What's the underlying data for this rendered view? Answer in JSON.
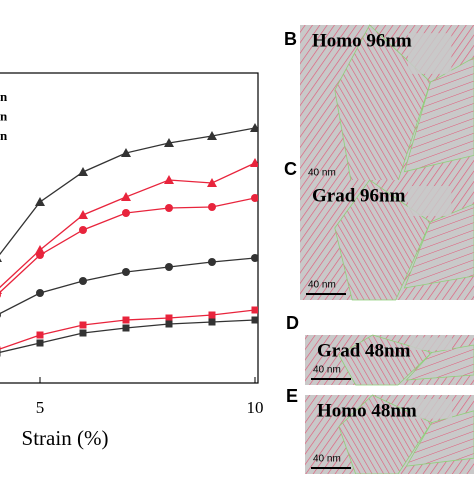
{
  "chart_data": {
    "type": "line",
    "x": [
      4,
      5,
      6,
      7,
      8,
      9,
      10
    ],
    "xlim": [
      4.07,
      10.07
    ],
    "xticks": [
      5,
      10
    ],
    "xlabel": "Strain (%)",
    "ylim": [
      0,
      310
    ],
    "legend_fragments": [
      "n",
      "n",
      "n"
    ],
    "series": [
      {
        "color": "#333333",
        "marker": "triangle",
        "values": [
          125,
          181,
          211,
          230,
          240,
          247,
          255
        ]
      },
      {
        "color": "#e8243c",
        "marker": "triangle",
        "values": [
          93,
          133,
          168,
          186,
          203,
          200,
          220
        ]
      },
      {
        "color": "#e8243c",
        "marker": "circle",
        "values": [
          88,
          128,
          153,
          170,
          175,
          176,
          185
        ]
      },
      {
        "color": "#333333",
        "marker": "circle",
        "values": [
          68,
          90,
          102,
          111,
          116,
          121,
          125
        ]
      },
      {
        "color": "#e8243c",
        "marker": "square",
        "values": [
          33,
          48,
          58,
          63,
          65,
          68,
          73
        ]
      },
      {
        "color": "#333333",
        "marker": "square",
        "values": [
          30,
          40,
          50,
          55,
          59,
          61,
          63
        ]
      }
    ]
  },
  "panels": [
    {
      "letter": "B",
      "label": "Homo 96nm",
      "scale": "40 nm"
    },
    {
      "letter": "C",
      "label": "Grad 96nm",
      "scale": "40 nm"
    },
    {
      "letter": "D",
      "label": "Grad 48nm",
      "scale": "40 nm"
    },
    {
      "letter": "E",
      "label": "Homo 48nm",
      "scale": "40 nm"
    }
  ]
}
